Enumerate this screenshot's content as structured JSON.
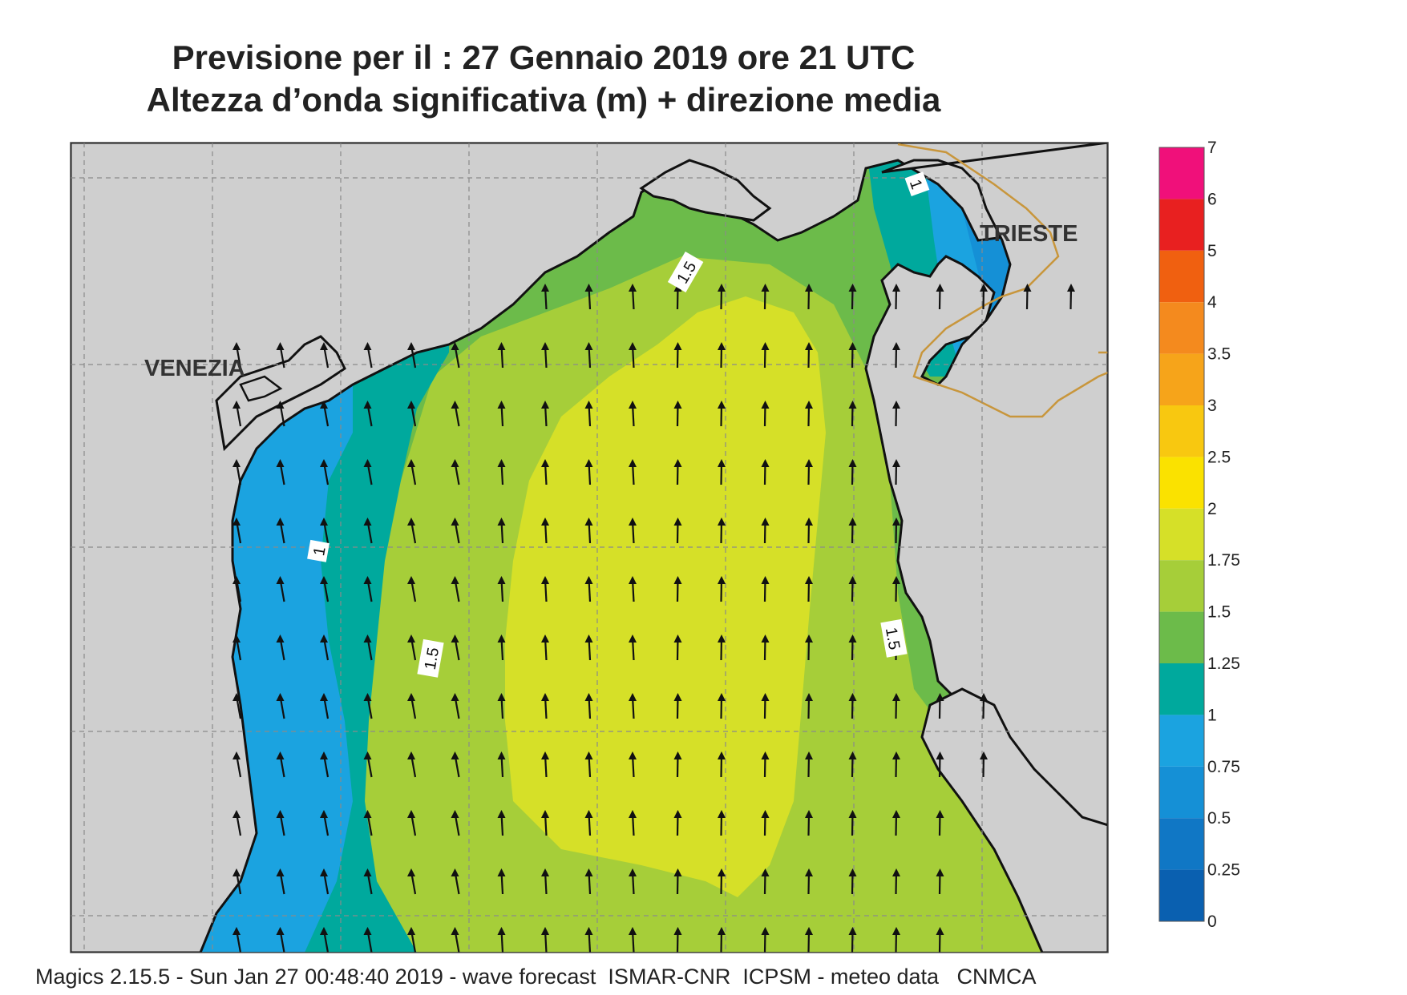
{
  "title": {
    "line1": "Previsione per il  :  27  Gennaio  2019   ore 21 UTC",
    "line2": "Altezza d’onda significativa (m) + direzione media"
  },
  "map": {
    "places": [
      "VENEZIA",
      "TRIESTE"
    ],
    "contour_labels": [
      "1.5",
      "1.5",
      "1.5",
      "1",
      "1"
    ],
    "arrow_direction": "north",
    "land_color": "#cfcfcf",
    "coast_color": "#111111",
    "border_color": "#c8963c"
  },
  "colorbar": {
    "labels": [
      "7",
      "6",
      "5",
      "4",
      "3.5",
      "3",
      "2.5",
      "2",
      "1.75",
      "1.5",
      "1.25",
      "1",
      "0.75",
      "0.5",
      "0.25",
      "0"
    ],
    "colors": [
      "#f0107a",
      "#e82020",
      "#f06010",
      "#f48a1e",
      "#f6a41a",
      "#f8c810",
      "#fae200",
      "#d6e028",
      "#a6ce39",
      "#6cbb4a",
      "#00a99d",
      "#1ba3e0",
      "#1590d6",
      "#1077c5",
      "#0a60b0"
    ]
  },
  "footer": "Magics 2.15.5 - Sun Jan 27 00:48:40 2019 - wave forecast  ISMAR-CNR  ICPSM - meteo data   CNMCA"
}
